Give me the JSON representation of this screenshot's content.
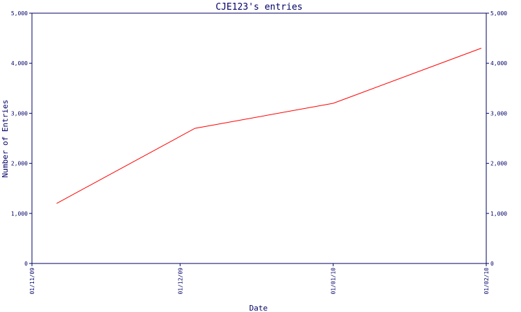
{
  "chart_data": {
    "type": "line",
    "title": "CJE123's entries",
    "xlabel": "Date",
    "ylabel": "Number of Entries",
    "x_ticks": [
      "01/11/09",
      "01/12/09",
      "01/01/10",
      "01/02/10"
    ],
    "y_ticks": [
      "0",
      "1,000",
      "2,000",
      "3,000",
      "4,000",
      "5,000"
    ],
    "ylim": [
      0,
      5000
    ],
    "xlim": [
      "2009-11-01",
      "2010-02-01"
    ],
    "grid": false,
    "right_axis_mirrors_left": true,
    "colors": {
      "axis": "#000066",
      "line": "#ff0000"
    },
    "series": [
      {
        "x": [
          "2009-11-06",
          "2009-12-04",
          "2010-01-01",
          "2010-01-31"
        ],
        "values": [
          1200,
          2700,
          3200,
          4300
        ]
      }
    ]
  }
}
